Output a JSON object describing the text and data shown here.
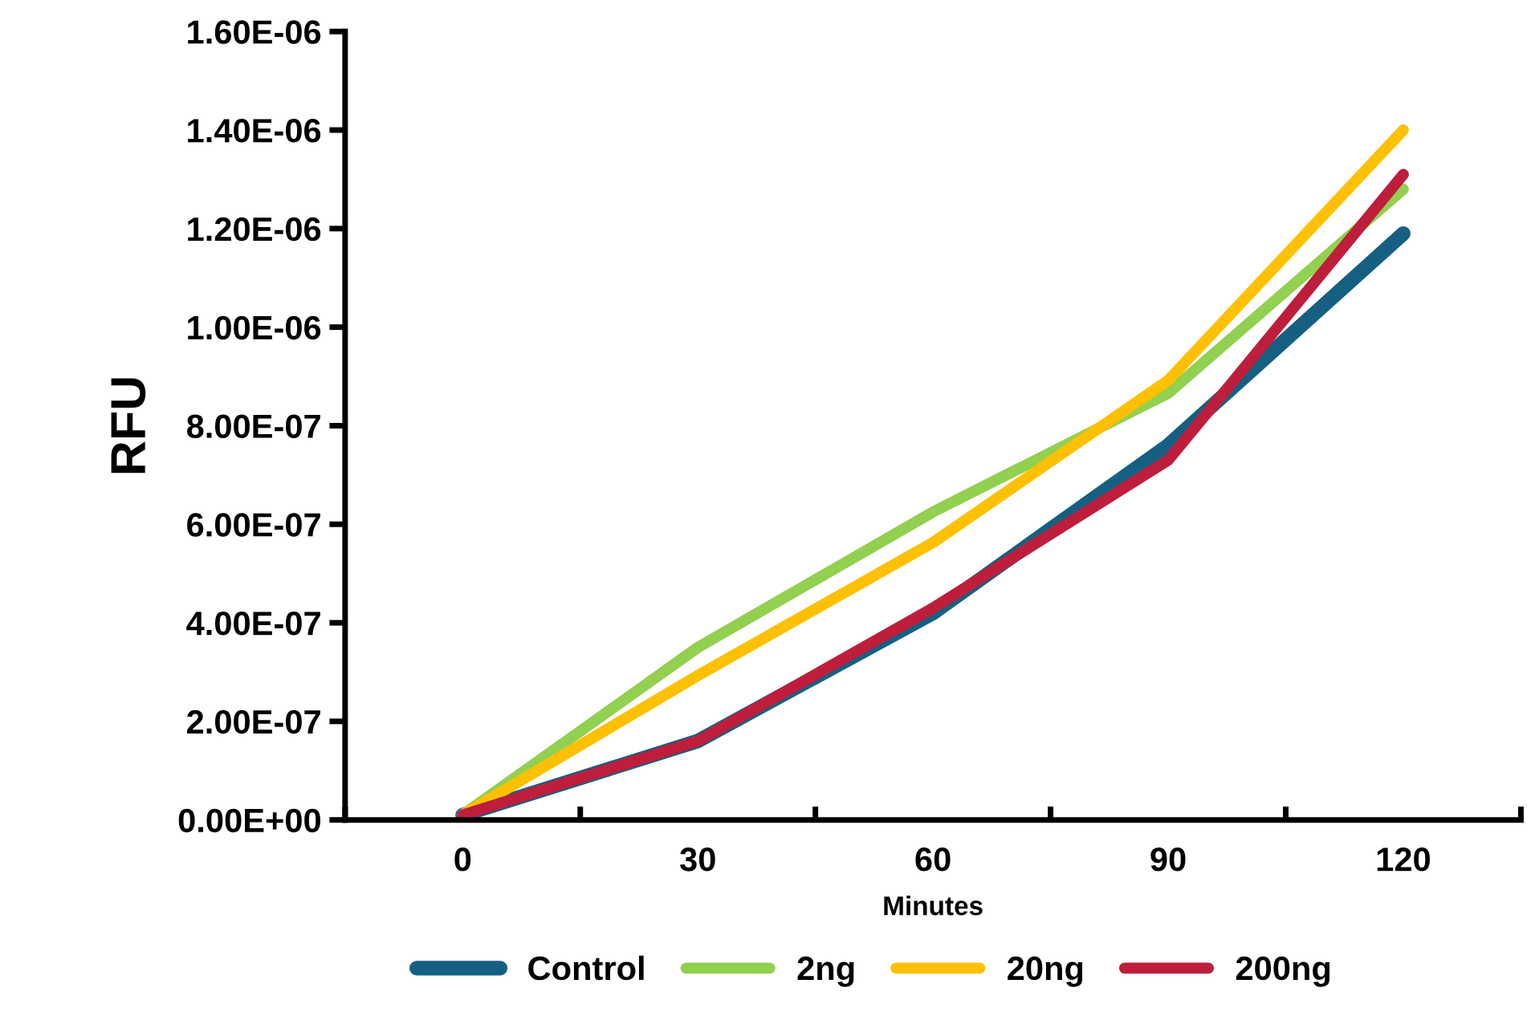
{
  "chart_data": {
    "type": "line",
    "xlabel": "Minutes",
    "ylabel": "RFU",
    "categories": [
      "0",
      "30",
      "60",
      "90",
      "120"
    ],
    "series": [
      {
        "name": "Control",
        "color": "#156082",
        "values": [
          1e-08,
          1.6e-07,
          4.2e-07,
          7.6e-07,
          1.19e-06
        ]
      },
      {
        "name": "2ng",
        "color": "#92D050",
        "values": [
          1e-08,
          3.5e-07,
          6.25e-07,
          8.66e-07,
          1.28e-06
        ]
      },
      {
        "name": "20ng",
        "color": "#FFC000",
        "values": [
          1e-08,
          2.93e-07,
          5.63e-07,
          8.92e-07,
          1.4e-06
        ]
      },
      {
        "name": "200ng",
        "color": "#BE1E3C",
        "values": [
          1e-08,
          1.6e-07,
          4.3e-07,
          7.3e-07,
          1.31e-06
        ]
      }
    ],
    "ylim": [
      0,
      1.6e-06
    ],
    "yticks": [
      {
        "value": 0,
        "label": "0.00E+00"
      },
      {
        "value": 2e-07,
        "label": "2.00E-07"
      },
      {
        "value": 4e-07,
        "label": "4.00E-07"
      },
      {
        "value": 6e-07,
        "label": "6.00E-07"
      },
      {
        "value": 8e-07,
        "label": "8.00E-07"
      },
      {
        "value": 1e-06,
        "label": "1.00E-06"
      },
      {
        "value": 1.2e-06,
        "label": "1.20E-06"
      },
      {
        "value": 1.4e-06,
        "label": "1.40E-06"
      },
      {
        "value": 1.6e-06,
        "label": "1.60E-06"
      }
    ],
    "grid": false,
    "legend": "bottom",
    "marker": "none",
    "line_style": "solid"
  }
}
